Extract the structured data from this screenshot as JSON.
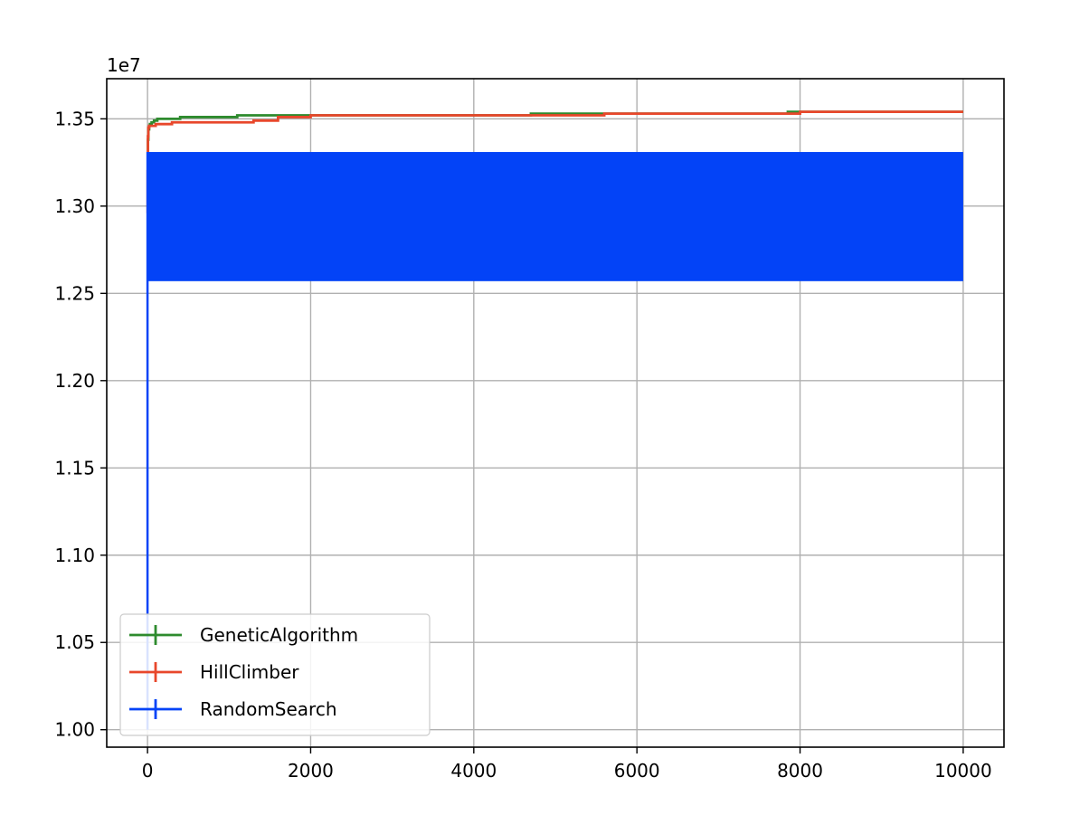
{
  "chart_data": {
    "type": "line",
    "title": "",
    "xlabel": "",
    "ylabel": "",
    "y_offset_label": "1e7",
    "xlim": [
      -500,
      10500
    ],
    "ylim": [
      9900000,
      13730000
    ],
    "xticks": [
      0,
      2000,
      4000,
      6000,
      8000,
      10000
    ],
    "xtick_labels": [
      "0",
      "2000",
      "4000",
      "6000",
      "8000",
      "10000"
    ],
    "yticks": [
      10000000,
      10500000,
      11000000,
      11500000,
      12000000,
      12500000,
      13000000,
      13500000
    ],
    "ytick_labels": [
      "1.00",
      "1.05",
      "1.10",
      "1.15",
      "1.20",
      "1.25",
      "1.30",
      "1.35"
    ],
    "grid": true,
    "legend_position": "lower-left",
    "series": [
      {
        "name": "GeneticAlgorithm",
        "color": "#2e8b2e",
        "x": [
          0,
          5,
          10,
          20,
          30,
          50,
          80,
          120,
          200,
          400,
          1100,
          1200,
          4700,
          5600,
          7850,
          7850,
          10000
        ],
        "y": [
          13000000,
          13380000,
          13440000,
          13460000,
          13470000,
          13480000,
          13490000,
          13500000,
          13500000,
          13510000,
          13520000,
          13520000,
          13530000,
          13530000,
          13530000,
          13540000,
          13540000
        ]
      },
      {
        "name": "HillClimber",
        "color": "#e8472b",
        "x": [
          0,
          2,
          5,
          10,
          20,
          50,
          100,
          300,
          500,
          1000,
          1300,
          1600,
          2000,
          3000,
          5600,
          8000,
          10000
        ],
        "y": [
          12960000,
          13200000,
          13400000,
          13450000,
          13460000,
          13460000,
          13470000,
          13480000,
          13480000,
          13480000,
          13490000,
          13510000,
          13520000,
          13520000,
          13530000,
          13540000,
          13540000
        ]
      },
      {
        "name": "RandomSearch",
        "color": "#0343f7",
        "x": [
          0,
          10000
        ],
        "y_low": [
          10000000,
          12570000
        ],
        "y_high": [
          13310000,
          13310000
        ]
      }
    ]
  }
}
